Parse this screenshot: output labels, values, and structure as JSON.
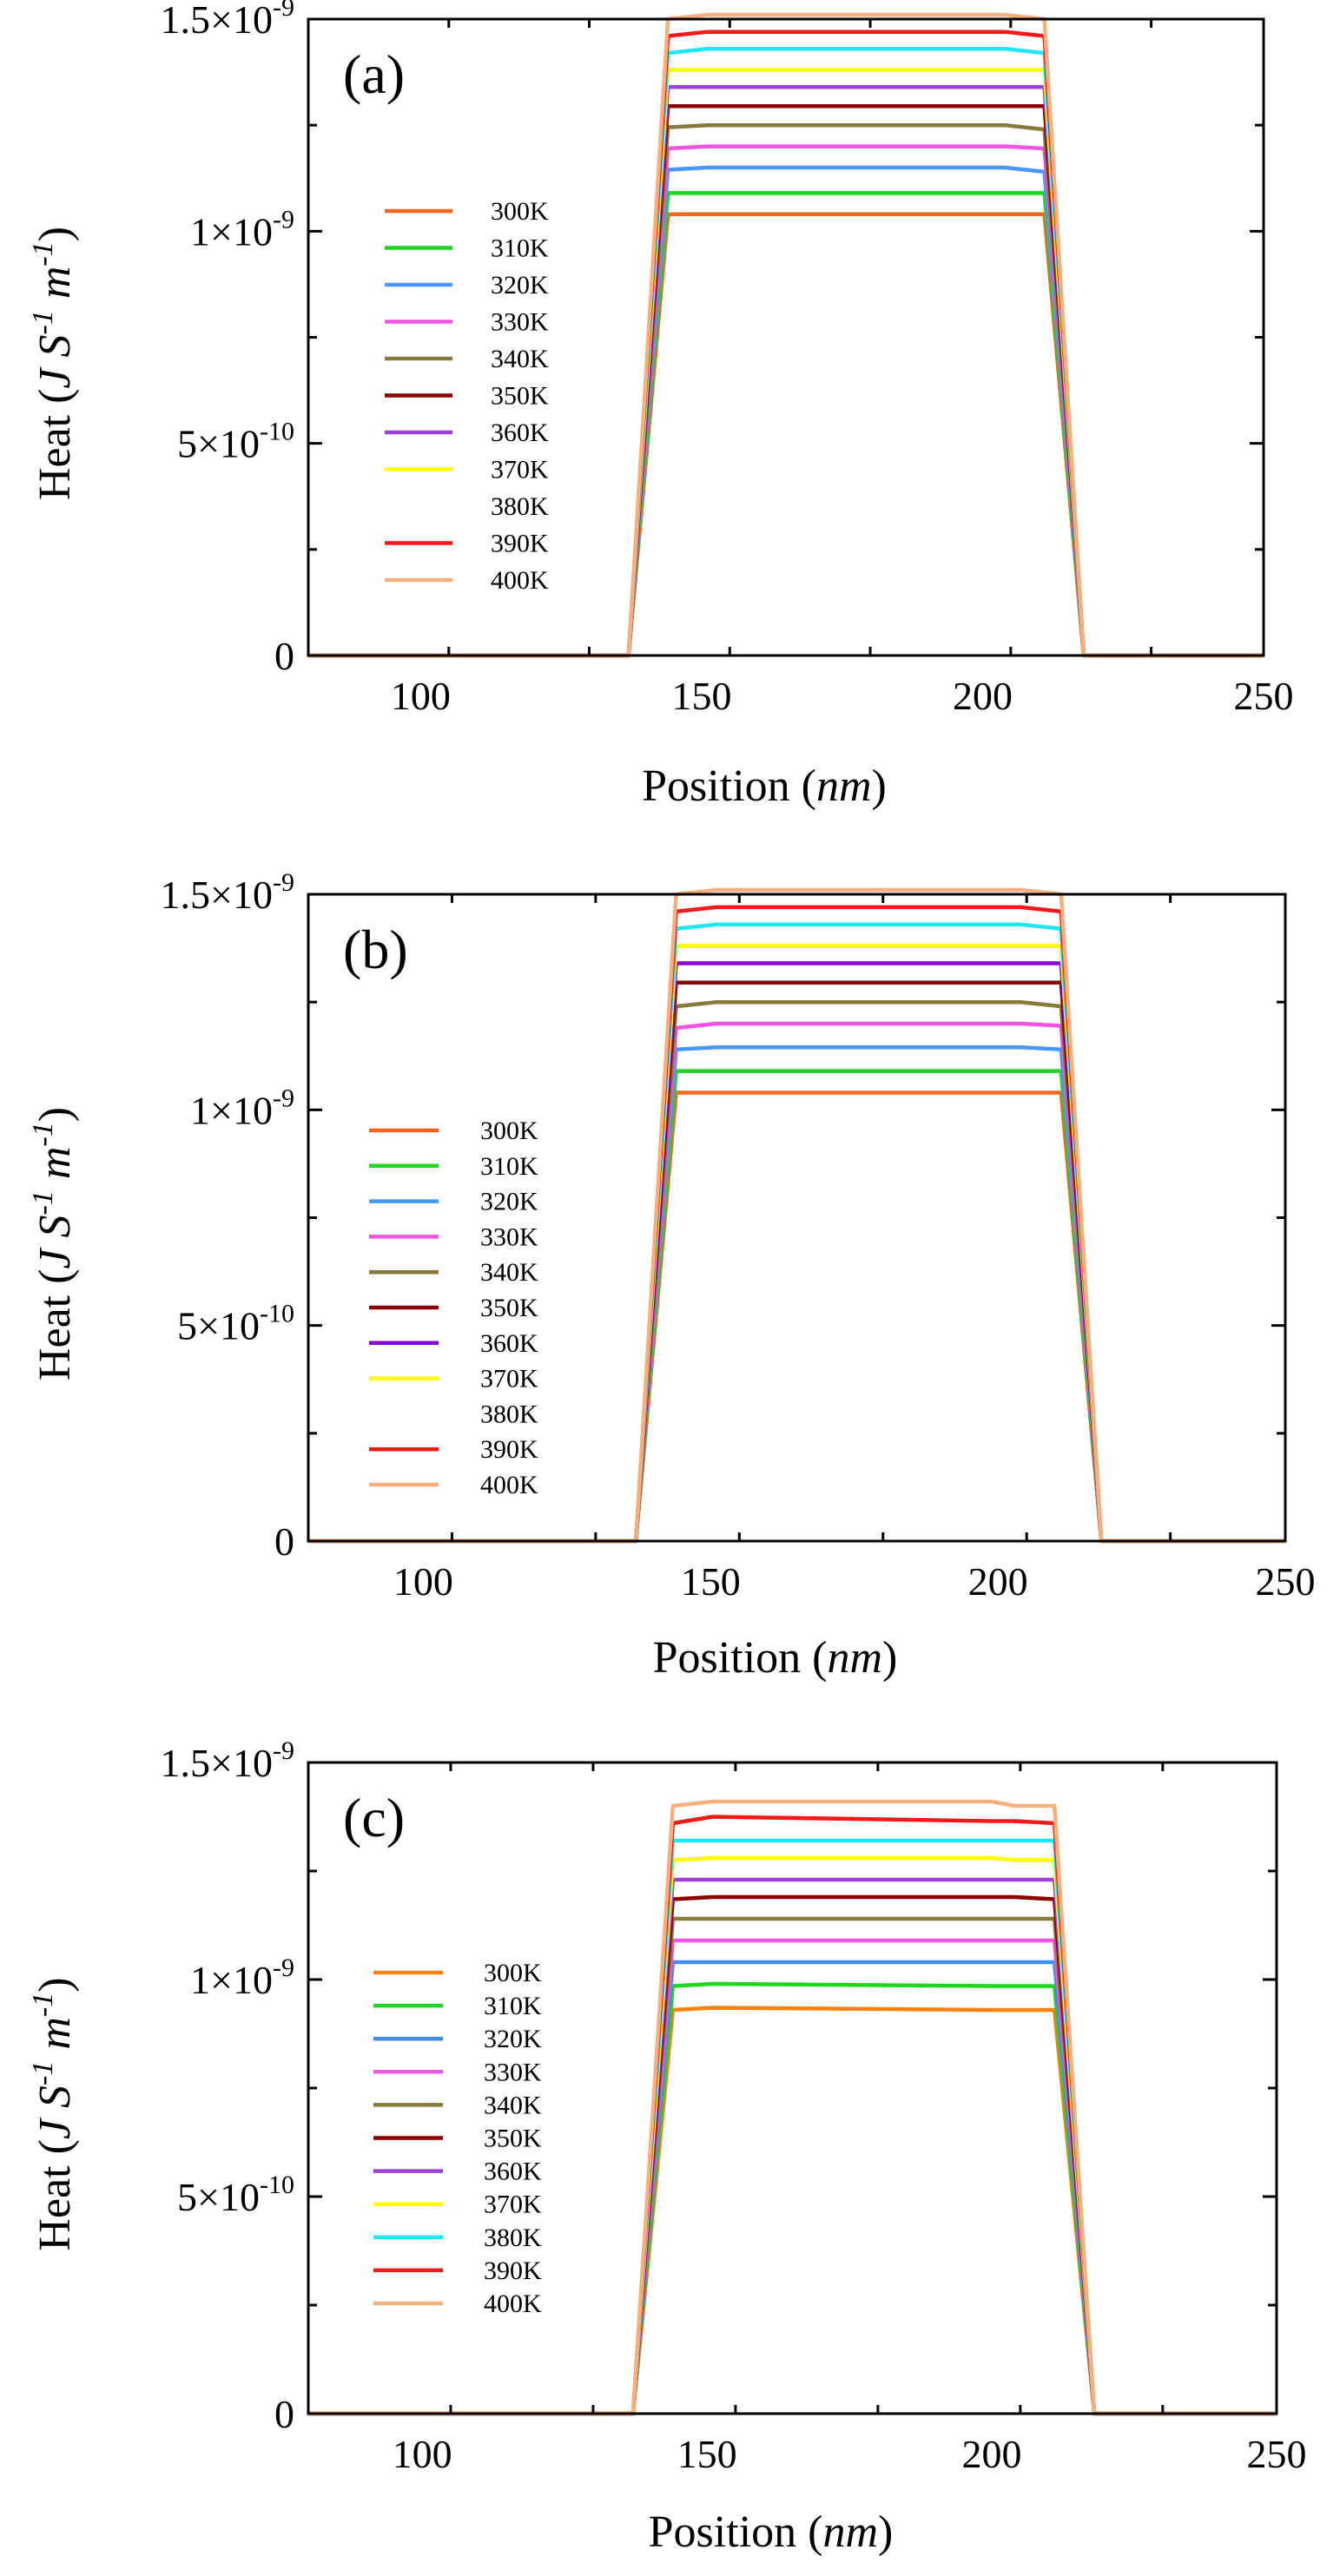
{
  "chart_data": [
    {
      "type": "line",
      "panel_label": "(a)",
      "xlabel_main": "Position (",
      "xlabel_unit": "nm",
      "xlabel_end": ")",
      "ylabel": "Heat (J S-1 m-1)",
      "ylabel_parts": {
        "base": "Heat (",
        "j": "J S",
        "exp1": "-1",
        "m": " m",
        "exp2": "-1",
        "end": ")"
      },
      "xlim": [
        80,
        250
      ],
      "ylim": [
        0,
        1.5e-09
      ],
      "xticks": [
        100,
        150,
        200,
        250
      ],
      "xtick_labels": [
        "100",
        "150",
        "200",
        "250"
      ],
      "yticks": [
        0,
        5e-10,
        1e-09,
        1.5e-09
      ],
      "ytick_labels": [
        {
          "base": "0",
          "exp": ""
        },
        {
          "base": "5×10",
          "exp": "-10"
        },
        {
          "base": "1×10",
          "exp": "-9"
        },
        {
          "base": "1.5×10",
          "exp": "-9"
        }
      ],
      "legend_position": "center-left",
      "profile_x": [
        80,
        137,
        144,
        151,
        200,
        204,
        211,
        218,
        250
      ],
      "series": [
        {
          "name": "300K",
          "color": "#f26522",
          "values": [
            0,
            0,
            1.04e-09,
            1.04e-09,
            1.04e-09,
            1.04e-09,
            1.04e-09,
            0,
            0
          ]
        },
        {
          "name": "310K",
          "color": "#1fd51f",
          "values": [
            0,
            0,
            1.09e-09,
            1.09e-09,
            1.09e-09,
            1.09e-09,
            1.09e-09,
            0,
            0
          ]
        },
        {
          "name": "320K",
          "color": "#4a96ff",
          "values": [
            0,
            0,
            1.145e-09,
            1.15e-09,
            1.15e-09,
            1.15e-09,
            1.14e-09,
            0,
            0
          ]
        },
        {
          "name": "330K",
          "color": "#ee55e0",
          "values": [
            0,
            0,
            1.195e-09,
            1.2e-09,
            1.2e-09,
            1.2e-09,
            1.195e-09,
            0,
            0
          ]
        },
        {
          "name": "340K",
          "color": "#857a37",
          "values": [
            0,
            0,
            1.245e-09,
            1.25e-09,
            1.25e-09,
            1.25e-09,
            1.24e-09,
            0,
            0
          ]
        },
        {
          "name": "350K",
          "color": "#8b0000",
          "values": [
            0,
            0,
            1.295e-09,
            1.295e-09,
            1.295e-09,
            1.295e-09,
            1.295e-09,
            0,
            0
          ]
        },
        {
          "name": "360K",
          "color": "#a040d8",
          "values": [
            0,
            0,
            1.34e-09,
            1.34e-09,
            1.34e-09,
            1.34e-09,
            1.34e-09,
            0,
            0
          ]
        },
        {
          "name": "370K",
          "color": "#ffff00",
          "values": [
            0,
            0,
            1.38e-09,
            1.38e-09,
            1.38e-09,
            1.38e-09,
            1.38e-09,
            0,
            0
          ]
        },
        {
          "name": "380K",
          "color": "#1ee6f5",
          "values": [
            0,
            0,
            1.42e-09,
            1.43e-09,
            1.43e-09,
            1.43e-09,
            1.42e-09,
            0,
            0
          ]
        },
        {
          "name": "390K",
          "color": "#f01a1a",
          "values": [
            0,
            0,
            1.46e-09,
            1.47e-09,
            1.47e-09,
            1.47e-09,
            1.46e-09,
            0,
            0
          ]
        },
        {
          "name": "400K",
          "color": "#f5b07e",
          "values": [
            0,
            0,
            1.5e-09,
            1.51e-09,
            1.51e-09,
            1.51e-09,
            1.5e-09,
            0,
            0
          ]
        }
      ],
      "legend_hidden_swatch": [
        "380K"
      ]
    },
    {
      "type": "line",
      "panel_label": "(b)",
      "xlabel_main": "Position (",
      "xlabel_unit": "nm",
      "xlabel_end": ")",
      "ylabel": "Heat (J S-1 m-1)",
      "ylabel_parts": {
        "base": "Heat (",
        "j": "J S",
        "exp1": "-1",
        "m": " m",
        "exp2": "-1",
        "end": ")"
      },
      "xlim": [
        80,
        250
      ],
      "ylim": [
        0,
        1.5e-09
      ],
      "xticks": [
        100,
        150,
        200,
        250
      ],
      "xtick_labels": [
        "100",
        "150",
        "200",
        "250"
      ],
      "yticks": [
        0,
        5e-10,
        1e-09,
        1.5e-09
      ],
      "ytick_labels": [
        {
          "base": "0",
          "exp": ""
        },
        {
          "base": "5×10",
          "exp": "-10"
        },
        {
          "base": "1×10",
          "exp": "-9"
        },
        {
          "base": "1.5×10",
          "exp": "-9"
        }
      ],
      "legend_position": "lower-left",
      "profile_x": [
        80,
        137,
        144,
        151,
        200,
        204,
        211,
        218,
        250
      ],
      "series": [
        {
          "name": "300K",
          "color": "#f26522",
          "values": [
            0,
            0,
            1.04e-09,
            1.04e-09,
            1.04e-09,
            1.04e-09,
            1.04e-09,
            0,
            0
          ]
        },
        {
          "name": "310K",
          "color": "#1fd51f",
          "values": [
            0,
            0,
            1.09e-09,
            1.09e-09,
            1.09e-09,
            1.09e-09,
            1.09e-09,
            0,
            0
          ]
        },
        {
          "name": "320K",
          "color": "#4a96ff",
          "values": [
            0,
            0,
            1.14e-09,
            1.145e-09,
            1.145e-09,
            1.145e-09,
            1.14e-09,
            0,
            0
          ]
        },
        {
          "name": "330K",
          "color": "#ee55e0",
          "values": [
            0,
            0,
            1.19e-09,
            1.2e-09,
            1.2e-09,
            1.2e-09,
            1.195e-09,
            0,
            0
          ]
        },
        {
          "name": "340K",
          "color": "#857a37",
          "values": [
            0,
            0,
            1.24e-09,
            1.25e-09,
            1.25e-09,
            1.25e-09,
            1.24e-09,
            0,
            0
          ]
        },
        {
          "name": "350K",
          "color": "#8b0000",
          "values": [
            0,
            0,
            1.295e-09,
            1.295e-09,
            1.295e-09,
            1.295e-09,
            1.295e-09,
            0,
            0
          ]
        },
        {
          "name": "360K",
          "color": "#8a00d4",
          "values": [
            0,
            0,
            1.34e-09,
            1.34e-09,
            1.34e-09,
            1.34e-09,
            1.34e-09,
            0,
            0
          ]
        },
        {
          "name": "370K",
          "color": "#ffff00",
          "values": [
            0,
            0,
            1.38e-09,
            1.38e-09,
            1.38e-09,
            1.38e-09,
            1.38e-09,
            0,
            0
          ]
        },
        {
          "name": "380K",
          "color": "#1ee6f5",
          "values": [
            0,
            0,
            1.42e-09,
            1.43e-09,
            1.43e-09,
            1.43e-09,
            1.42e-09,
            0,
            0
          ]
        },
        {
          "name": "390K",
          "color": "#f01a1a",
          "values": [
            0,
            0,
            1.46e-09,
            1.47e-09,
            1.47e-09,
            1.47e-09,
            1.46e-09,
            0,
            0
          ]
        },
        {
          "name": "400K",
          "color": "#f5b07e",
          "values": [
            0,
            0,
            1.5e-09,
            1.51e-09,
            1.51e-09,
            1.51e-09,
            1.5e-09,
            0,
            0
          ]
        }
      ],
      "legend_hidden_swatch": [
        "380K"
      ]
    },
    {
      "type": "line",
      "panel_label": "(c)",
      "xlabel_main": "Position (",
      "xlabel_unit": "nm",
      "xlabel_end": ")",
      "ylabel": "Heat (J S-1 m-1)",
      "ylabel_parts": {
        "base": "Heat (",
        "j": "J S",
        "exp1": "-1",
        "m": " m",
        "exp2": "-1",
        "end": ")"
      },
      "xlim": [
        80,
        250
      ],
      "ylim": [
        0,
        1.5e-09
      ],
      "xticks": [
        100,
        150,
        200,
        250
      ],
      "xtick_labels": [
        "100",
        "150",
        "200",
        "250"
      ],
      "yticks": [
        0,
        5e-10,
        1e-09,
        1.5e-09
      ],
      "ytick_labels": [
        {
          "base": "0",
          "exp": ""
        },
        {
          "base": "5×10",
          "exp": "-10"
        },
        {
          "base": "1×10",
          "exp": "-9"
        },
        {
          "base": "1.5×10",
          "exp": "-9"
        }
      ],
      "legend_position": "lower-left",
      "profile_x": [
        80,
        137,
        144,
        151,
        200,
        204,
        211,
        218,
        250
      ],
      "series": [
        {
          "name": "300K",
          "color": "#f5820f",
          "values": [
            0,
            0,
            9.3e-10,
            9.35e-10,
            9.3e-10,
            9.3e-10,
            9.3e-10,
            0,
            0
          ]
        },
        {
          "name": "310K",
          "color": "#1fd51f",
          "values": [
            0,
            0,
            9.85e-10,
            9.9e-10,
            9.85e-10,
            9.85e-10,
            9.85e-10,
            0,
            0
          ]
        },
        {
          "name": "320K",
          "color": "#3d8ef0",
          "values": [
            0,
            0,
            1.04e-09,
            1.04e-09,
            1.04e-09,
            1.04e-09,
            1.04e-09,
            0,
            0
          ]
        },
        {
          "name": "330K",
          "color": "#ee55e0",
          "values": [
            0,
            0,
            1.09e-09,
            1.09e-09,
            1.09e-09,
            1.09e-09,
            1.09e-09,
            0,
            0
          ]
        },
        {
          "name": "340K",
          "color": "#857a37",
          "values": [
            0,
            0,
            1.14e-09,
            1.14e-09,
            1.14e-09,
            1.14e-09,
            1.14e-09,
            0,
            0
          ]
        },
        {
          "name": "350K",
          "color": "#8b0000",
          "values": [
            0,
            0,
            1.185e-09,
            1.19e-09,
            1.19e-09,
            1.19e-09,
            1.185e-09,
            0,
            0
          ]
        },
        {
          "name": "360K",
          "color": "#a040d8",
          "values": [
            0,
            0,
            1.23e-09,
            1.23e-09,
            1.23e-09,
            1.23e-09,
            1.23e-09,
            0,
            0
          ]
        },
        {
          "name": "370K",
          "color": "#ffff00",
          "values": [
            0,
            0,
            1.275e-09,
            1.28e-09,
            1.28e-09,
            1.275e-09,
            1.275e-09,
            0,
            0
          ]
        },
        {
          "name": "380K",
          "color": "#1ee6f5",
          "values": [
            0,
            0,
            1.32e-09,
            1.32e-09,
            1.32e-09,
            1.32e-09,
            1.32e-09,
            0,
            0
          ]
        },
        {
          "name": "390K",
          "color": "#f01a1a",
          "values": [
            0,
            0,
            1.36e-09,
            1.375e-09,
            1.365e-09,
            1.365e-09,
            1.36e-09,
            0,
            0
          ]
        },
        {
          "name": "400K",
          "color": "#f5b07e",
          "values": [
            0,
            0,
            1.4e-09,
            1.41e-09,
            1.41e-09,
            1.4e-09,
            1.4e-09,
            0,
            0
          ]
        }
      ],
      "legend_hidden_swatch": []
    }
  ]
}
